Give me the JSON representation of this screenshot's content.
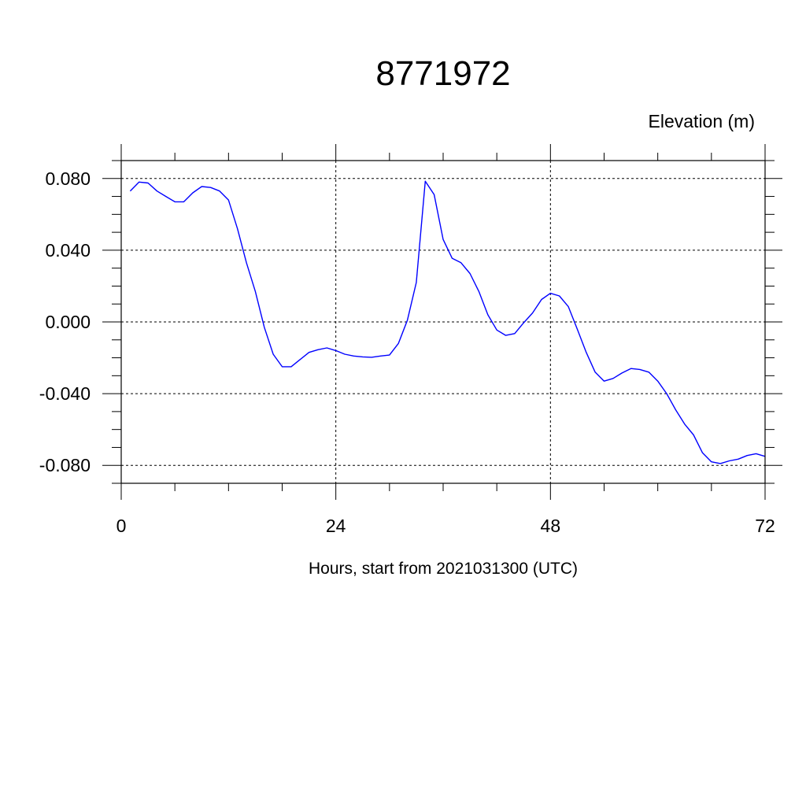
{
  "chart_data": {
    "type": "line",
    "title": "8771972",
    "ylabel": "Elevation (m)",
    "xlabel": "Hours, start from 2021031300 (UTC)",
    "xlim": [
      0,
      72
    ],
    "ylim": [
      -0.09,
      0.09
    ],
    "xticks": [
      0,
      24,
      48,
      72
    ],
    "xtick_labels": [
      "0",
      "24",
      "48",
      "72"
    ],
    "yticks": [
      0.08,
      0.04,
      0.0,
      -0.04,
      -0.08
    ],
    "ytick_labels": [
      "0.080",
      "0.040",
      "0.000",
      "-0.040",
      "-0.080"
    ],
    "grid": true,
    "line_color": "#0000ff",
    "series": [
      {
        "x": [
          1,
          2,
          3,
          4,
          5,
          6,
          7,
          8,
          9,
          10,
          11,
          12,
          13,
          14,
          15,
          16,
          17,
          18,
          19,
          20,
          21,
          22,
          23,
          24,
          25,
          26,
          27,
          28,
          29,
          30,
          31,
          32,
          33,
          34,
          35,
          36,
          37,
          38,
          39,
          40,
          41,
          42,
          43,
          44,
          45,
          46,
          47,
          48,
          49,
          50,
          51,
          52,
          53,
          54,
          55,
          56,
          57,
          58,
          59,
          60,
          61,
          62,
          63,
          64,
          65,
          66,
          67,
          68,
          69,
          70,
          71,
          72
        ],
        "y": [
          0.073,
          0.078,
          0.0775,
          0.073,
          0.07,
          0.067,
          0.067,
          0.072,
          0.0755,
          0.075,
          0.073,
          0.068,
          0.052,
          0.033,
          0.017,
          -0.003,
          -0.018,
          -0.025,
          -0.025,
          -0.021,
          -0.017,
          -0.0155,
          -0.0145,
          -0.016,
          -0.018,
          -0.019,
          -0.0195,
          -0.0197,
          -0.019,
          -0.0185,
          -0.012,
          0.001,
          0.022,
          0.0785,
          0.071,
          0.046,
          0.0355,
          0.033,
          0.027,
          0.017,
          0.004,
          -0.0045,
          -0.0075,
          -0.0065,
          -0.0005,
          0.005,
          0.0125,
          0.016,
          0.0145,
          0.0085,
          -0.004,
          -0.017,
          -0.028,
          -0.033,
          -0.0315,
          -0.0285,
          -0.026,
          -0.0265,
          -0.028,
          -0.033,
          -0.04,
          -0.049,
          -0.057,
          -0.063,
          -0.073,
          -0.078,
          -0.079,
          -0.0775,
          -0.0765,
          -0.0745,
          -0.0735,
          -0.075
        ]
      }
    ]
  }
}
